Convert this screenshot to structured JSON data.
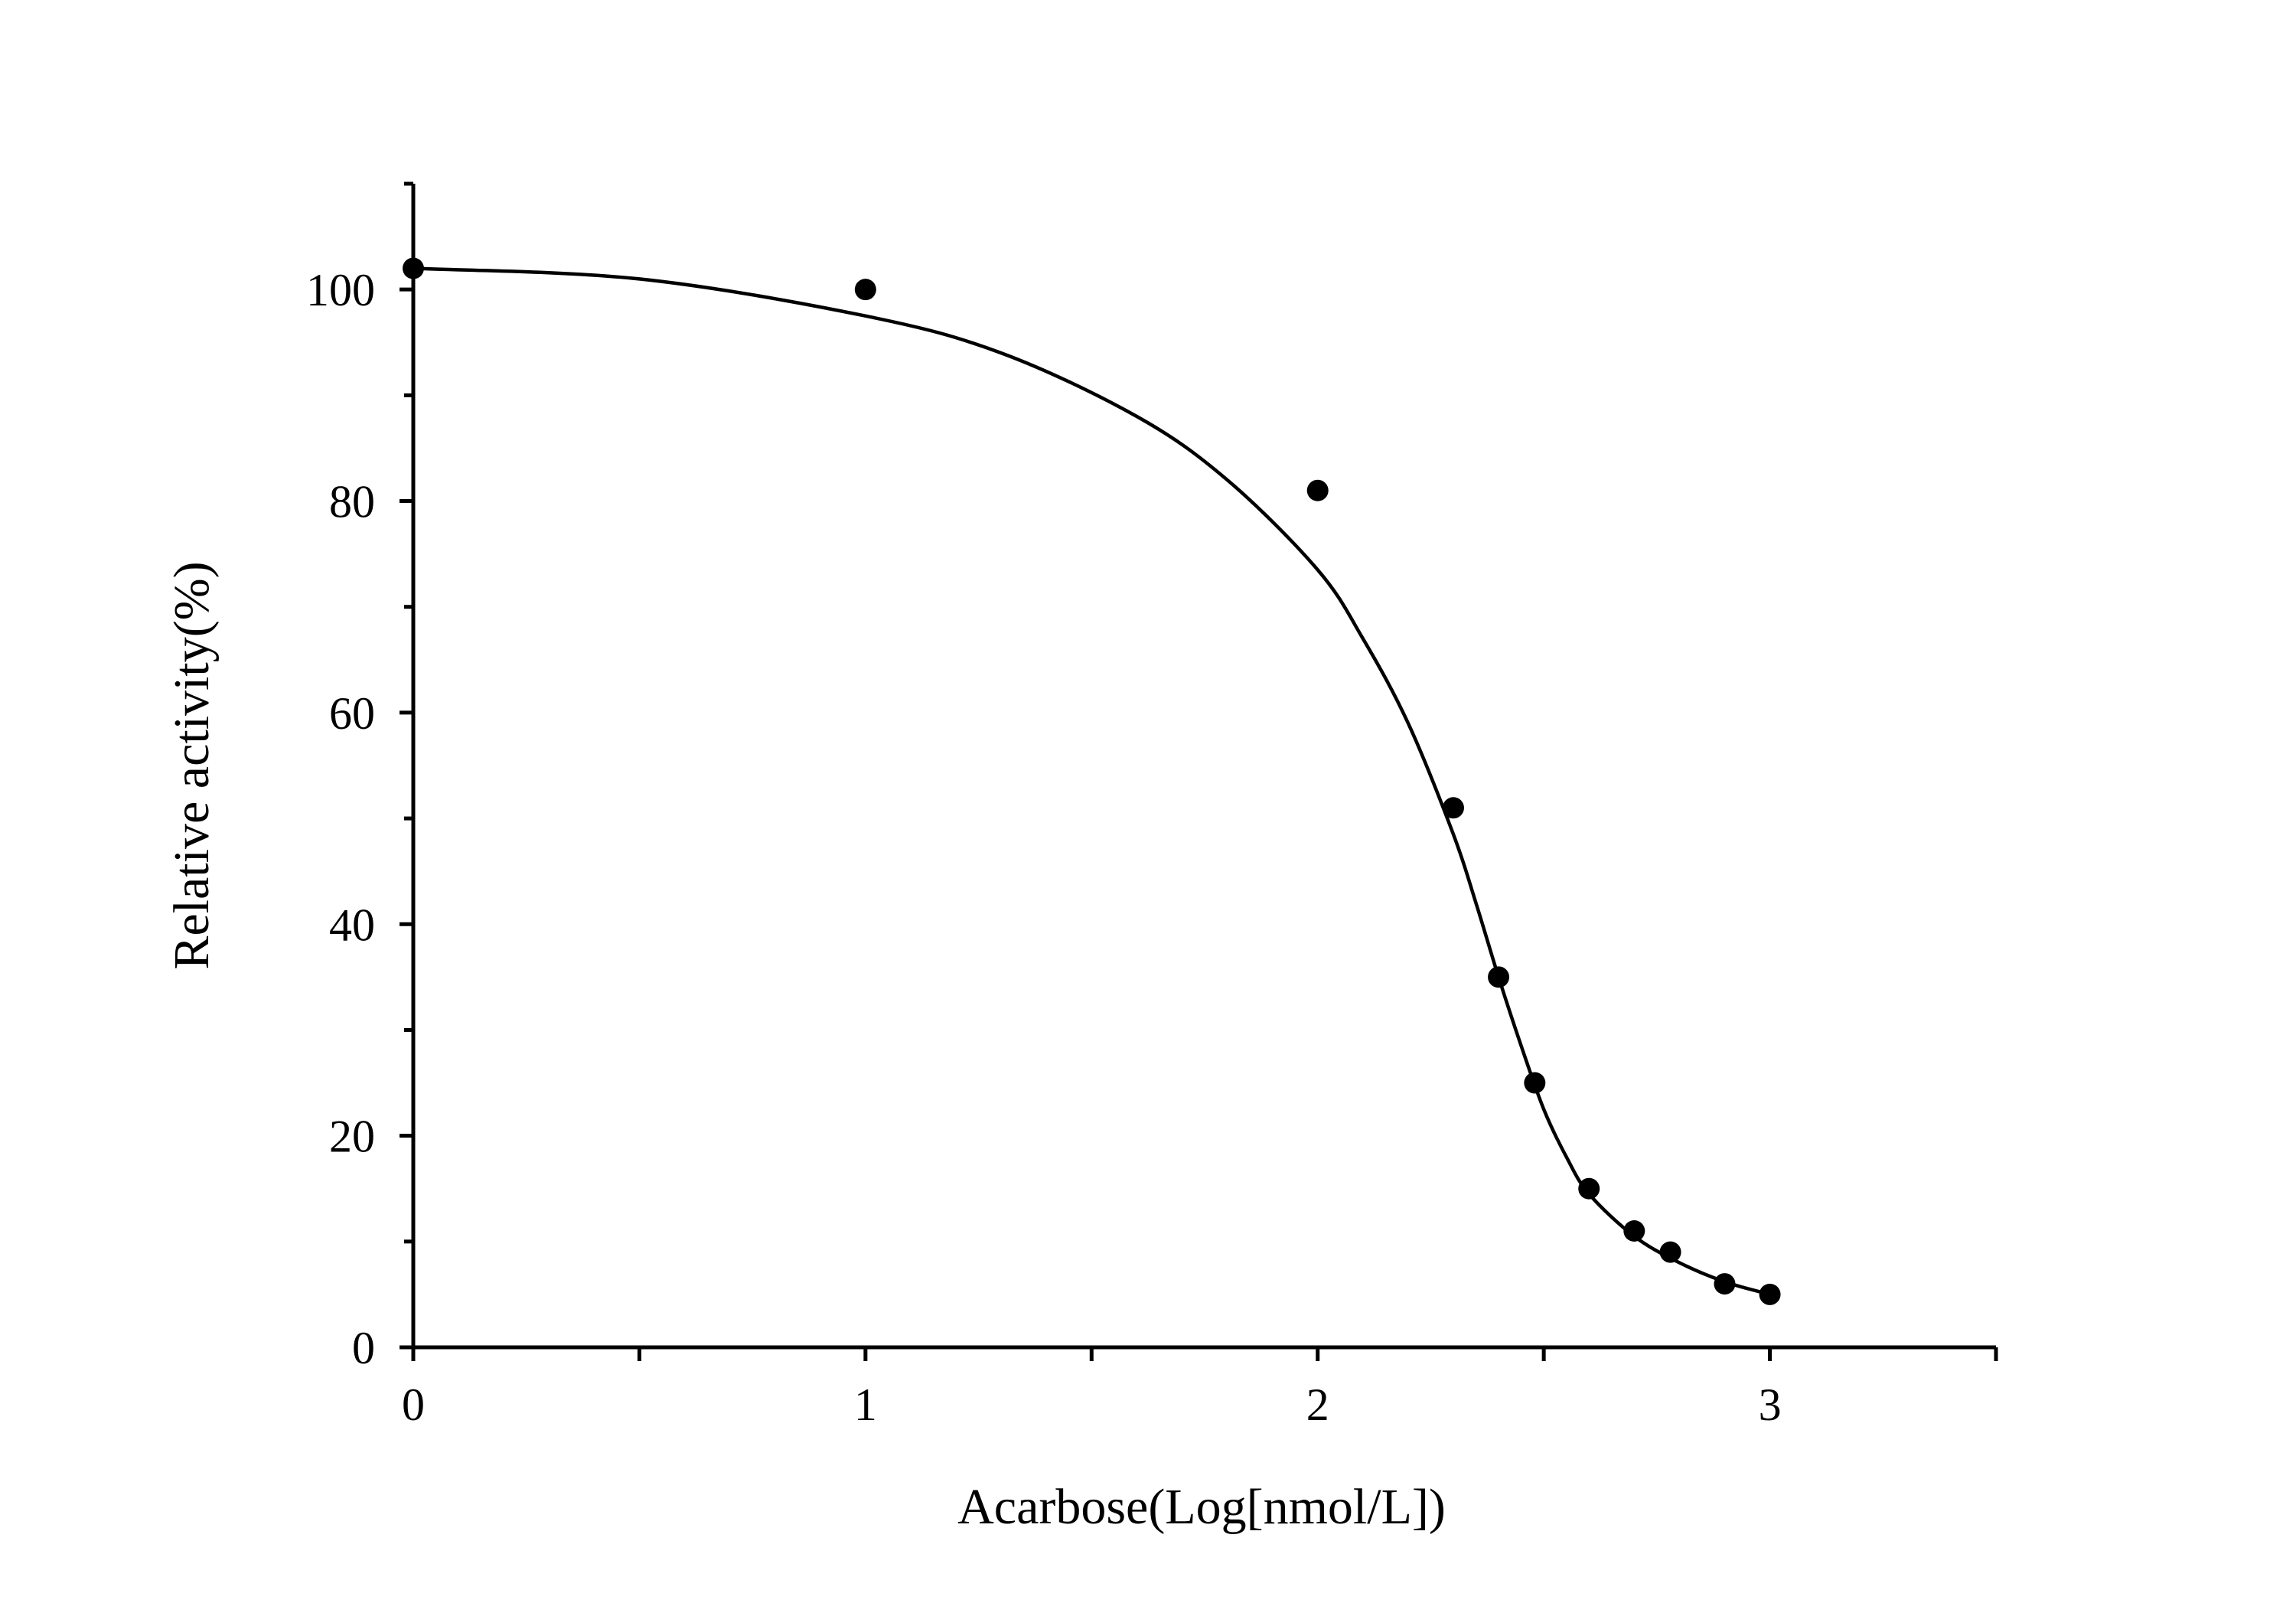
{
  "chart_data": {
    "type": "scatter",
    "xlabel": "Acarbose(Log[nmol/L])",
    "ylabel": "Relative activity(%)",
    "xlim": [
      0,
      3.5
    ],
    "ylim": [
      0,
      110
    ],
    "x_ticks": [
      "0",
      "1",
      "2",
      "3"
    ],
    "y_ticks": [
      "0",
      "20",
      "40",
      "60",
      "80",
      "100"
    ],
    "grid": false,
    "legend": "none",
    "colors": {
      "points": "#000000",
      "curve": "#000000",
      "axes": "#000000"
    },
    "series": [
      {
        "kind": "points",
        "x": [
          0,
          1,
          2,
          2.3,
          2.4,
          2.48,
          2.6,
          2.7,
          2.78,
          2.9,
          3.0
        ],
        "y": [
          102,
          100,
          81,
          51,
          35,
          25,
          15,
          11,
          9,
          6,
          5
        ]
      },
      {
        "kind": "fitted-curve",
        "x": [
          0,
          0.5,
          1,
          1.3,
          1.6,
          1.8,
          2,
          2.1,
          2.2,
          2.3,
          2.35,
          2.4,
          2.45,
          2.5,
          2.55,
          2.6,
          2.7,
          2.8,
          2.9,
          3.0
        ],
        "y": [
          102,
          101,
          97.5,
          94,
          88,
          82,
          73.5,
          67,
          59,
          48.5,
          42,
          35,
          28.5,
          22.5,
          18,
          14.5,
          10.5,
          8,
          6.2,
          5
        ]
      }
    ]
  }
}
